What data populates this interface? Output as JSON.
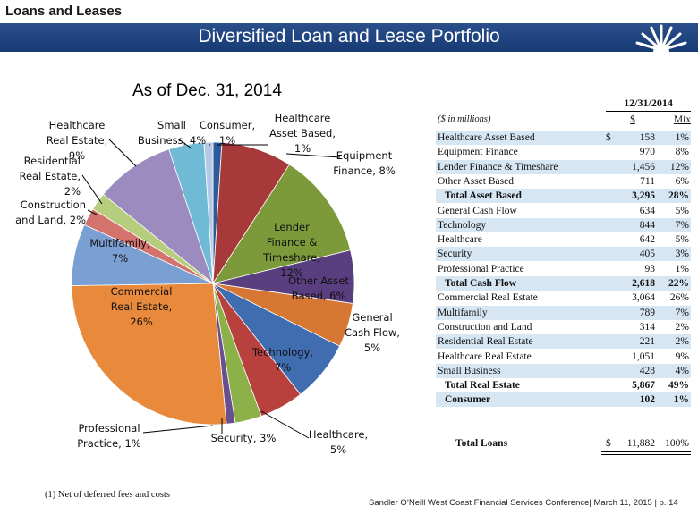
{
  "section_title": "Loans and Leases",
  "banner_title": "Diversified Loan and Lease Portfolio",
  "colors": {
    "banner": "#1f4480",
    "accent": "#d6e6f3"
  },
  "chart_data": {
    "type": "pie",
    "title": "As of Dec. 31, 2014",
    "slices": [
      {
        "label_lines": [
          "Healthcare",
          "Asset Based,",
          "1%"
        ],
        "value": 1,
        "color": "#2c5a9a"
      },
      {
        "label_lines": [
          "Equipment",
          "Finance, 8%"
        ],
        "value": 8,
        "color": "#a8393a"
      },
      {
        "label_lines": [
          "Lender",
          "Finance &",
          "Timeshare,",
          "12%"
        ],
        "value": 12,
        "color": "#7d9a3a"
      },
      {
        "label_lines": [
          "Other Asset",
          "Based, 6%"
        ],
        "value": 6,
        "color": "#5a3f80"
      },
      {
        "label_lines": [
          "General",
          "Cash Flow,",
          "5%"
        ],
        "value": 5,
        "color": "#d67733"
      },
      {
        "label_lines": [
          "Technology,",
          "7%"
        ],
        "value": 7,
        "color": "#3f6db0"
      },
      {
        "label_lines": [
          "Healthcare,",
          "5%"
        ],
        "value": 5,
        "color": "#b8413e"
      },
      {
        "label_lines": [
          "Security, 3%"
        ],
        "value": 3,
        "color": "#8cb149"
      },
      {
        "label_lines": [
          "Professional",
          "Practice, 1%"
        ],
        "value": 1,
        "color": "#6a4f8e"
      },
      {
        "label_lines": [
          "Commercial",
          "Real Estate,",
          "26%"
        ],
        "value": 26,
        "color": "#e8893b"
      },
      {
        "label_lines": [
          "Multifamily,",
          "7%"
        ],
        "value": 7,
        "color": "#7a9fd2"
      },
      {
        "label_lines": [
          "Construction",
          "and Land, 2%"
        ],
        "value": 2,
        "color": "#d4726e"
      },
      {
        "label_lines": [
          "Residential",
          "Real Estate,",
          "2%"
        ],
        "value": 2,
        "color": "#b5cd7c"
      },
      {
        "label_lines": [
          "Healthcare",
          "Real Estate,",
          "9%"
        ],
        "value": 9,
        "color": "#9c8bbf"
      },
      {
        "label_lines": [
          "Small",
          "Business, 4%"
        ],
        "value": 4,
        "color": "#6fbad4"
      },
      {
        "label_lines": [
          "Consumer,",
          "1%"
        ],
        "value": 1,
        "color": "#b5c9e6"
      }
    ]
  },
  "table": {
    "date_header": "12/31/2014",
    "units_label": "($ in millions)",
    "col_dollar": "$",
    "col_mix": "Mix",
    "rows": [
      {
        "label": "Healthcare Asset Based",
        "cur": "$",
        "amount": "158",
        "mix": "1%",
        "shaded": true,
        "bold": false
      },
      {
        "label": "Equipment Finance",
        "cur": "",
        "amount": "970",
        "mix": "8%",
        "shaded": false,
        "bold": false
      },
      {
        "label": "Lender Finance & Timeshare",
        "cur": "",
        "amount": "1,456",
        "mix": "12%",
        "shaded": true,
        "bold": false
      },
      {
        "label": "Other Asset Based",
        "cur": "",
        "amount": "711",
        "mix": "6%",
        "shaded": false,
        "bold": false
      },
      {
        "label": "Total Asset Based",
        "cur": "",
        "amount": "3,295",
        "mix": "28%",
        "shaded": true,
        "bold": true
      },
      {
        "label": "General Cash Flow",
        "cur": "",
        "amount": "634",
        "mix": "5%",
        "shaded": false,
        "bold": false
      },
      {
        "label": "Technology",
        "cur": "",
        "amount": "844",
        "mix": "7%",
        "shaded": true,
        "bold": false
      },
      {
        "label": "Healthcare",
        "cur": "",
        "amount": "642",
        "mix": "5%",
        "shaded": false,
        "bold": false
      },
      {
        "label": "Security",
        "cur": "",
        "amount": "405",
        "mix": "3%",
        "shaded": true,
        "bold": false
      },
      {
        "label": "Professional Practice",
        "cur": "",
        "amount": "93",
        "mix": "1%",
        "shaded": false,
        "bold": false
      },
      {
        "label": "Total Cash Flow",
        "cur": "",
        "amount": "2,618",
        "mix": "22%",
        "shaded": true,
        "bold": true
      },
      {
        "label": "Commercial Real Estate",
        "cur": "",
        "amount": "3,064",
        "mix": "26%",
        "shaded": false,
        "bold": false
      },
      {
        "label": "Multifamily",
        "cur": "",
        "amount": "789",
        "mix": "7%",
        "shaded": true,
        "bold": false
      },
      {
        "label": "Construction and Land",
        "cur": "",
        "amount": "314",
        "mix": "2%",
        "shaded": false,
        "bold": false
      },
      {
        "label": "Residential Real Estate",
        "cur": "",
        "amount": "221",
        "mix": "2%",
        "shaded": true,
        "bold": false
      },
      {
        "label": "Healthcare Real Estate",
        "cur": "",
        "amount": "1,051",
        "mix": "9%",
        "shaded": false,
        "bold": false
      },
      {
        "label": "Small Business",
        "cur": "",
        "amount": "428",
        "mix": "4%",
        "shaded": true,
        "bold": false
      },
      {
        "label": "Total Real Estate",
        "cur": "",
        "amount": "5,867",
        "mix": "49%",
        "shaded": false,
        "bold": true
      },
      {
        "label": "Consumer",
        "cur": "",
        "amount": "102",
        "mix": "1%",
        "shaded": true,
        "bold": true
      }
    ],
    "total": {
      "label": "Total Loans",
      "cur": "$",
      "amount": "11,882",
      "mix": "100%"
    }
  },
  "footnote": "(1) Net of deferred fees and costs",
  "footer": "Sandler O’Neill West Coast Financial Services Conference| March 11, 2015 | p. 14"
}
